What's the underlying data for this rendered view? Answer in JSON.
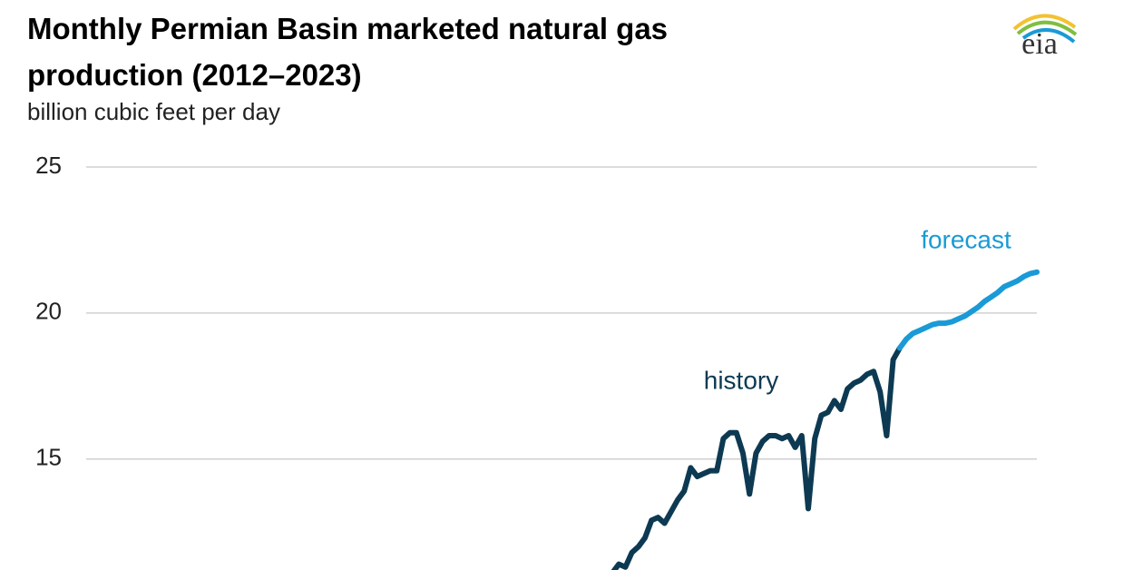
{
  "chart_data": {
    "type": "line",
    "title": "Monthly Permian Basin marketed natural gas production (2012–2023)",
    "subtitle": "billion cubic feet per day",
    "logo": "eia",
    "categories": [
      null,
      null,
      null,
      null,
      null,
      null,
      null,
      null,
      null,
      null,
      null,
      null,
      null,
      null,
      null,
      null,
      null,
      null,
      null,
      null,
      null,
      null,
      null,
      null,
      null,
      null,
      null,
      null,
      null,
      null,
      null,
      null,
      null,
      null,
      null,
      null,
      null,
      null,
      null,
      null,
      null,
      null,
      null,
      null,
      null,
      null,
      null,
      null,
      null,
      null,
      null,
      null,
      null,
      null,
      null,
      null,
      null,
      null,
      null,
      null,
      null,
      null,
      null,
      null,
      null,
      null
    ],
    "series": [
      {
        "name": "history",
        "color": "#0d3a52",
        "values": [
          11.1,
          11.4,
          11.3,
          11.8,
          12.0,
          12.3,
          12.9,
          13.0,
          12.8,
          13.2,
          13.6,
          13.9,
          14.7,
          14.4,
          14.5,
          14.6,
          14.6,
          15.7,
          15.9,
          15.9,
          15.2,
          13.8,
          15.2,
          15.6,
          15.8,
          15.8,
          15.7,
          15.8,
          15.4,
          15.8,
          13.3,
          15.7,
          16.5,
          16.6,
          17.0,
          16.7,
          17.4,
          17.6,
          17.7,
          17.9,
          18.0,
          17.3,
          15.8,
          18.4,
          18.8,
          null,
          null,
          null,
          null,
          null,
          null,
          null,
          null,
          null,
          null,
          null,
          null,
          null,
          null,
          null,
          null,
          null,
          null,
          null,
          null,
          null
        ]
      },
      {
        "name": "forecast",
        "color": "#1a9ad6",
        "values": [
          null,
          null,
          null,
          null,
          null,
          null,
          null,
          null,
          null,
          null,
          null,
          null,
          null,
          null,
          null,
          null,
          null,
          null,
          null,
          null,
          null,
          null,
          null,
          null,
          null,
          null,
          null,
          null,
          null,
          null,
          null,
          null,
          null,
          null,
          null,
          null,
          null,
          null,
          null,
          null,
          null,
          null,
          null,
          null,
          18.8,
          19.1,
          19.3,
          19.4,
          19.5,
          19.6,
          19.65,
          19.65,
          19.7,
          19.8,
          19.9,
          20.05,
          20.2,
          20.4,
          20.55,
          20.7,
          20.9,
          21.0,
          21.1,
          21.25,
          21.35,
          21.4
        ]
      }
    ],
    "ylim": [
      11.2,
      25
    ],
    "yticks": [
      15,
      20,
      25
    ],
    "grid": true
  }
}
